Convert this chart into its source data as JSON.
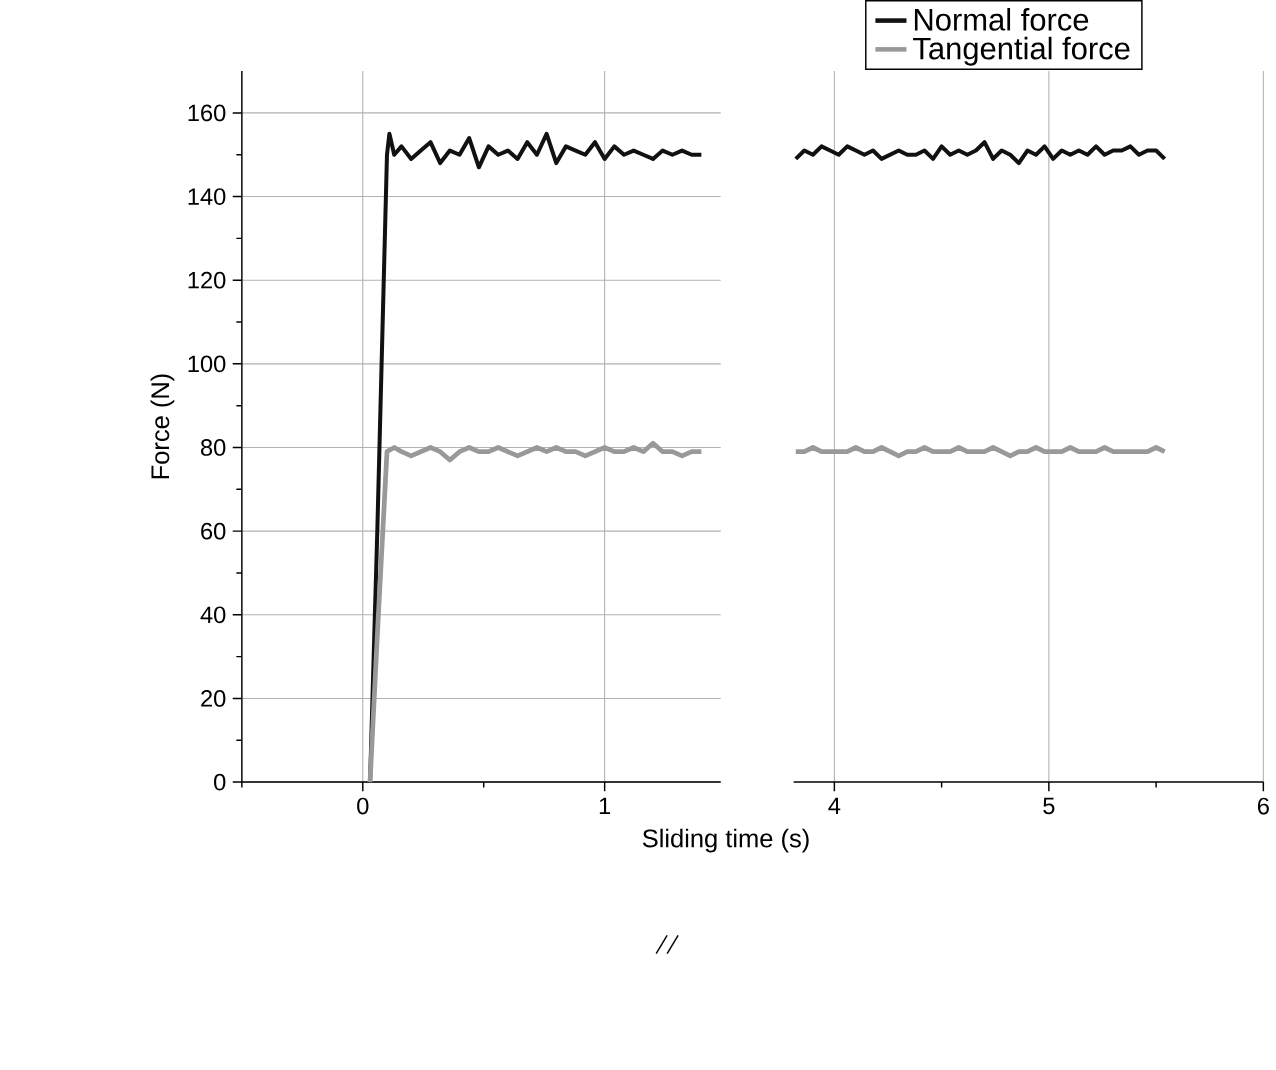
{
  "chart_data": [
    {
      "type": "line",
      "xlabel": "Sliding time (s)",
      "ylabel": "Force (N)",
      "xlim": [
        -0.5,
        1.48
      ],
      "xticks": [
        {
          "value": -0.5,
          "label": null
        },
        0,
        {
          "value": 0.5,
          "label": null
        },
        1
      ],
      "ylim": [
        0,
        170
      ],
      "yticks": [
        0,
        {
          "value": 10,
          "label": null
        },
        20,
        {
          "value": 30,
          "label": null
        },
        40,
        {
          "value": 50,
          "label": null
        },
        60,
        {
          "value": 70,
          "label": null
        },
        80,
        {
          "value": 90,
          "label": null
        },
        100,
        {
          "value": 110,
          "label": null
        },
        120,
        {
          "value": 130,
          "label": null
        },
        140,
        {
          "value": 150,
          "label": null
        },
        160
      ],
      "grid": true,
      "series": [
        {
          "color": "#111111",
          "x": [
            0.03,
            0.06,
            0.1,
            0.11,
            0.13,
            0.16,
            0.2,
            0.24,
            0.28,
            0.32,
            0.36,
            0.4,
            0.44,
            0.48,
            0.52,
            0.56,
            0.6,
            0.64,
            0.68,
            0.72,
            0.76,
            0.8,
            0.84,
            0.88,
            0.92,
            0.96,
            1.0,
            1.04,
            1.08,
            1.12,
            1.16,
            1.2,
            1.24,
            1.28,
            1.32,
            1.36,
            1.4
          ],
          "values": [
            0,
            60,
            150,
            155,
            150,
            152,
            149,
            151,
            153,
            148,
            151,
            150,
            154,
            147,
            152,
            150,
            151,
            149,
            153,
            150,
            155,
            148,
            152,
            151,
            150,
            153,
            149,
            152,
            150,
            151,
            150,
            149,
            151,
            150,
            151,
            150,
            150
          ]
        },
        {
          "color": "#999999",
          "x": [
            0.03,
            0.06,
            0.1,
            0.13,
            0.16,
            0.2,
            0.24,
            0.28,
            0.32,
            0.36,
            0.4,
            0.44,
            0.48,
            0.52,
            0.56,
            0.6,
            0.64,
            0.68,
            0.72,
            0.76,
            0.8,
            0.84,
            0.88,
            0.92,
            0.96,
            1.0,
            1.04,
            1.08,
            1.12,
            1.16,
            1.2,
            1.24,
            1.28,
            1.32,
            1.36,
            1.4
          ],
          "values": [
            0,
            35,
            79,
            80,
            79,
            78,
            79,
            80,
            79,
            77,
            79,
            80,
            79,
            79,
            80,
            79,
            78,
            79,
            80,
            79,
            80,
            79,
            79,
            78,
            79,
            80,
            79,
            79,
            80,
            79,
            81,
            79,
            79,
            78,
            79,
            79
          ]
        }
      ]
    },
    {
      "type": "line",
      "xlim": [
        3.81,
        6
      ],
      "xticks": [
        4,
        {
          "value": 4.5,
          "label": null
        },
        5,
        {
          "value": 5.5,
          "label": null
        },
        6
      ],
      "ylim": [
        0,
        170
      ],
      "yticks": [
        0,
        20,
        40,
        60,
        80,
        100,
        120,
        140,
        160
      ],
      "grid": true,
      "tick_labels": "x",
      "legend": "top",
      "series": [
        {
          "name": "Normal force",
          "color": "#111111",
          "x": [
            3.82,
            3.86,
            3.9,
            3.94,
            3.98,
            4.02,
            4.06,
            4.1,
            4.14,
            4.18,
            4.22,
            4.26,
            4.3,
            4.34,
            4.38,
            4.42,
            4.46,
            4.5,
            4.54,
            4.58,
            4.62,
            4.66,
            4.7,
            4.74,
            4.78,
            4.82,
            4.86,
            4.9,
            4.94,
            4.98,
            5.02,
            5.06,
            5.1,
            5.14,
            5.18,
            5.22,
            5.26,
            5.3,
            5.34,
            5.38,
            5.42,
            5.46,
            5.5,
            5.54
          ],
          "values": [
            149,
            151,
            150,
            152,
            151,
            150,
            152,
            151,
            150,
            151,
            149,
            150,
            151,
            150,
            150,
            151,
            149,
            152,
            150,
            151,
            150,
            151,
            153,
            149,
            151,
            150,
            148,
            151,
            150,
            152,
            149,
            151,
            150,
            151,
            150,
            152,
            150,
            151,
            151,
            152,
            150,
            151,
            151,
            149
          ]
        },
        {
          "name": "Tangential force",
          "color": "#999999",
          "x": [
            3.82,
            3.86,
            3.9,
            3.94,
            3.98,
            4.02,
            4.06,
            4.1,
            4.14,
            4.18,
            4.22,
            4.26,
            4.3,
            4.34,
            4.38,
            4.42,
            4.46,
            4.5,
            4.54,
            4.58,
            4.62,
            4.66,
            4.7,
            4.74,
            4.78,
            4.82,
            4.86,
            4.9,
            4.94,
            4.98,
            5.02,
            5.06,
            5.1,
            5.14,
            5.18,
            5.22,
            5.26,
            5.3,
            5.34,
            5.38,
            5.42,
            5.46,
            5.5,
            5.54
          ],
          "values": [
            79,
            79,
            80,
            79,
            79,
            79,
            79,
            80,
            79,
            79,
            80,
            79,
            78,
            79,
            79,
            80,
            79,
            79,
            79,
            80,
            79,
            79,
            79,
            80,
            79,
            78,
            79,
            79,
            80,
            79,
            79,
            79,
            80,
            79,
            79,
            79,
            80,
            79,
            79,
            79,
            79,
            79,
            80,
            79
          ]
        }
      ]
    }
  ]
}
